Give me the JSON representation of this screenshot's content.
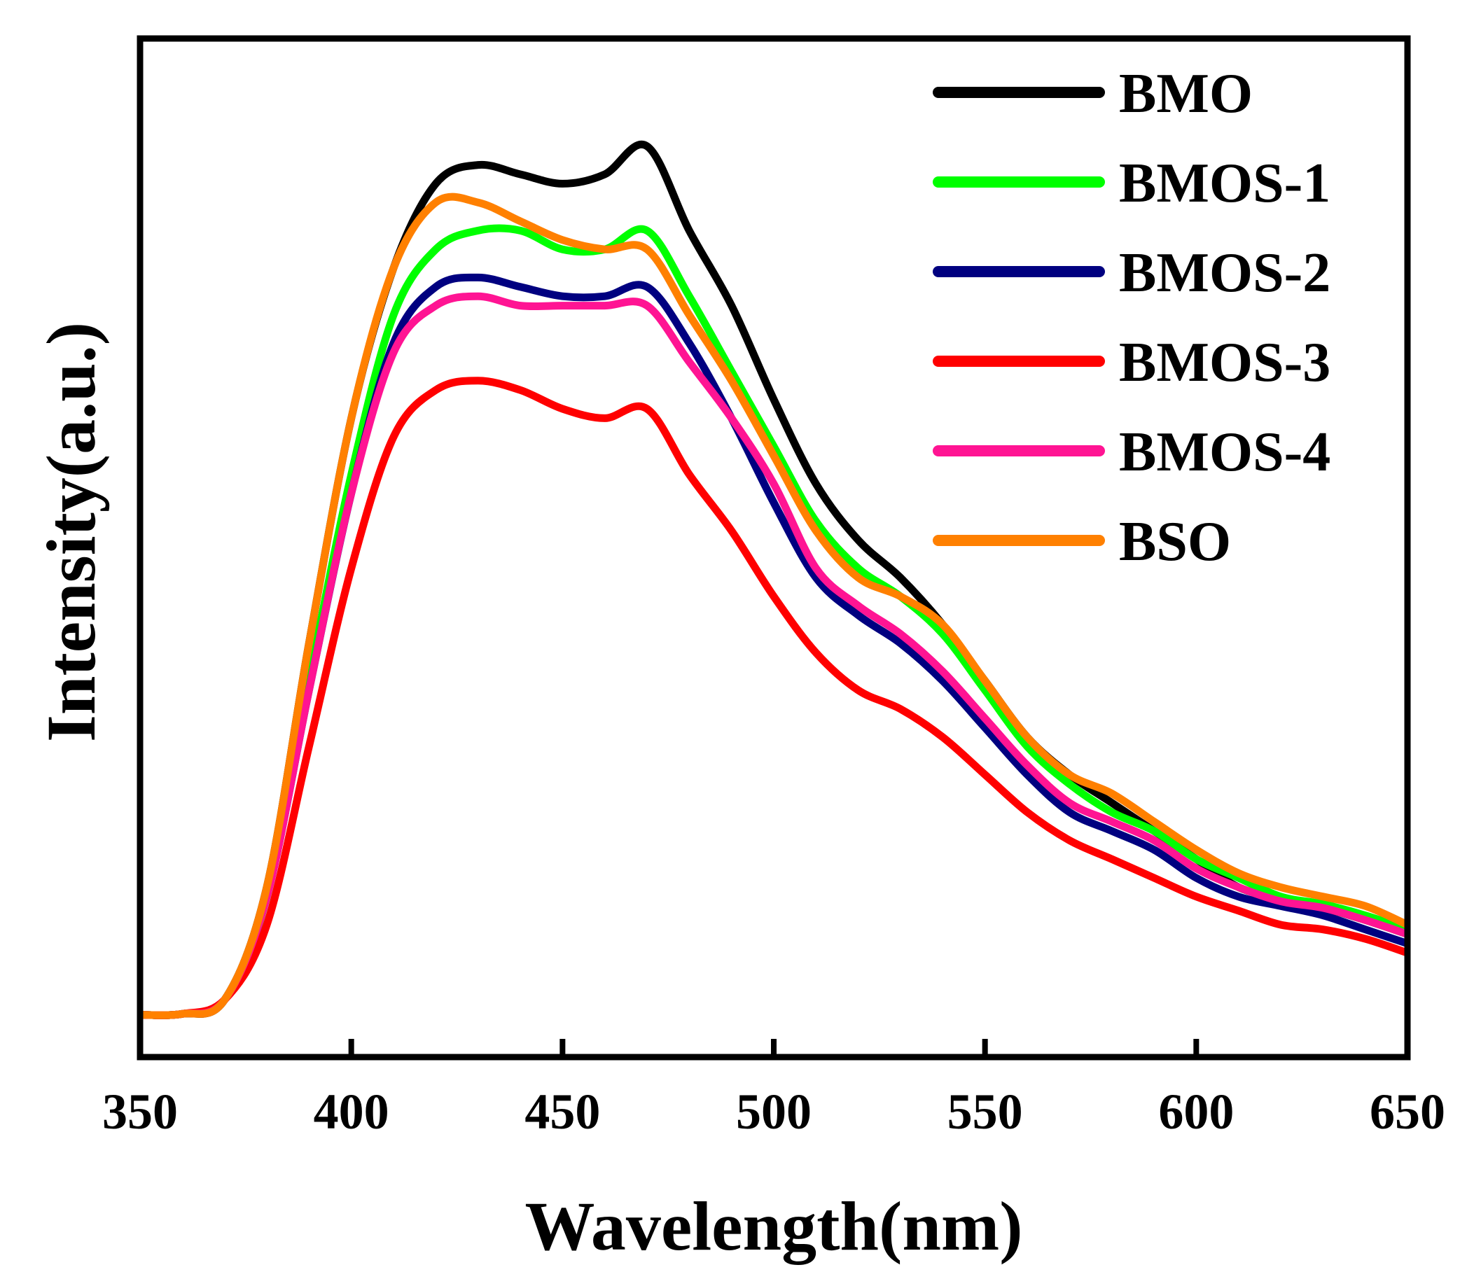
{
  "chart_data": {
    "type": "line",
    "title": "",
    "xlabel": "Wavelength(nm)",
    "ylabel": "Intensity(a.u.)",
    "xlim": [
      350,
      650
    ],
    "ylim": [
      0,
      1.0
    ],
    "x_ticks": [
      350,
      400,
      450,
      500,
      550,
      600,
      650
    ],
    "show_y_ticks": false,
    "grid": false,
    "legend_position": "top-right",
    "x": [
      350,
      360,
      370,
      380,
      390,
      400,
      410,
      420,
      430,
      440,
      450,
      460,
      470,
      480,
      490,
      500,
      510,
      520,
      530,
      540,
      550,
      560,
      570,
      580,
      590,
      600,
      610,
      620,
      630,
      640,
      650
    ],
    "series": [
      {
        "name": "BMO",
        "color": "#000000",
        "values": [
          0.004,
          0.005,
          0.02,
          0.14,
          0.4,
          0.64,
          0.8,
          0.89,
          0.91,
          0.9,
          0.89,
          0.9,
          0.93,
          0.84,
          0.76,
          0.66,
          0.57,
          0.51,
          0.47,
          0.42,
          0.36,
          0.3,
          0.26,
          0.23,
          0.2,
          0.17,
          0.14,
          0.128,
          0.118,
          0.105,
          0.09
        ]
      },
      {
        "name": "BMOS-1",
        "color": "#00ff00",
        "values": [
          0.004,
          0.005,
          0.02,
          0.13,
          0.36,
          0.58,
          0.75,
          0.82,
          0.84,
          0.84,
          0.82,
          0.82,
          0.84,
          0.77,
          0.69,
          0.61,
          0.53,
          0.48,
          0.45,
          0.41,
          0.35,
          0.29,
          0.25,
          0.22,
          0.2,
          0.17,
          0.15,
          0.13,
          0.122,
          0.11,
          0.095
        ]
      },
      {
        "name": "BMOS-2",
        "color": "#000080",
        "values": [
          0.004,
          0.005,
          0.02,
          0.13,
          0.35,
          0.56,
          0.72,
          0.78,
          0.79,
          0.78,
          0.77,
          0.77,
          0.78,
          0.72,
          0.64,
          0.55,
          0.47,
          0.43,
          0.4,
          0.36,
          0.31,
          0.26,
          0.22,
          0.2,
          0.18,
          0.15,
          0.13,
          0.12,
          0.11,
          0.095,
          0.08
        ]
      },
      {
        "name": "BMOS-3",
        "color": "#ff0000",
        "values": [
          0.004,
          0.005,
          0.02,
          0.1,
          0.29,
          0.48,
          0.62,
          0.67,
          0.68,
          0.67,
          0.65,
          0.64,
          0.65,
          0.58,
          0.52,
          0.45,
          0.39,
          0.35,
          0.33,
          0.3,
          0.26,
          0.22,
          0.19,
          0.17,
          0.15,
          0.13,
          0.115,
          0.1,
          0.095,
          0.085,
          0.07
        ]
      },
      {
        "name": "BMOS-4",
        "color": "#ff1493",
        "values": [
          0.004,
          0.005,
          0.02,
          0.13,
          0.35,
          0.56,
          0.71,
          0.76,
          0.77,
          0.76,
          0.76,
          0.76,
          0.76,
          0.7,
          0.64,
          0.57,
          0.48,
          0.44,
          0.41,
          0.37,
          0.32,
          0.27,
          0.23,
          0.21,
          0.19,
          0.16,
          0.14,
          0.125,
          0.118,
          0.105,
          0.09
        ]
      },
      {
        "name": "BSO",
        "color": "#ff8000",
        "values": [
          0.004,
          0.005,
          0.02,
          0.14,
          0.4,
          0.64,
          0.8,
          0.87,
          0.87,
          0.85,
          0.83,
          0.82,
          0.82,
          0.75,
          0.68,
          0.6,
          0.52,
          0.47,
          0.45,
          0.42,
          0.36,
          0.3,
          0.26,
          0.24,
          0.21,
          0.18,
          0.155,
          0.14,
          0.13,
          0.12,
          0.1
        ]
      }
    ]
  }
}
